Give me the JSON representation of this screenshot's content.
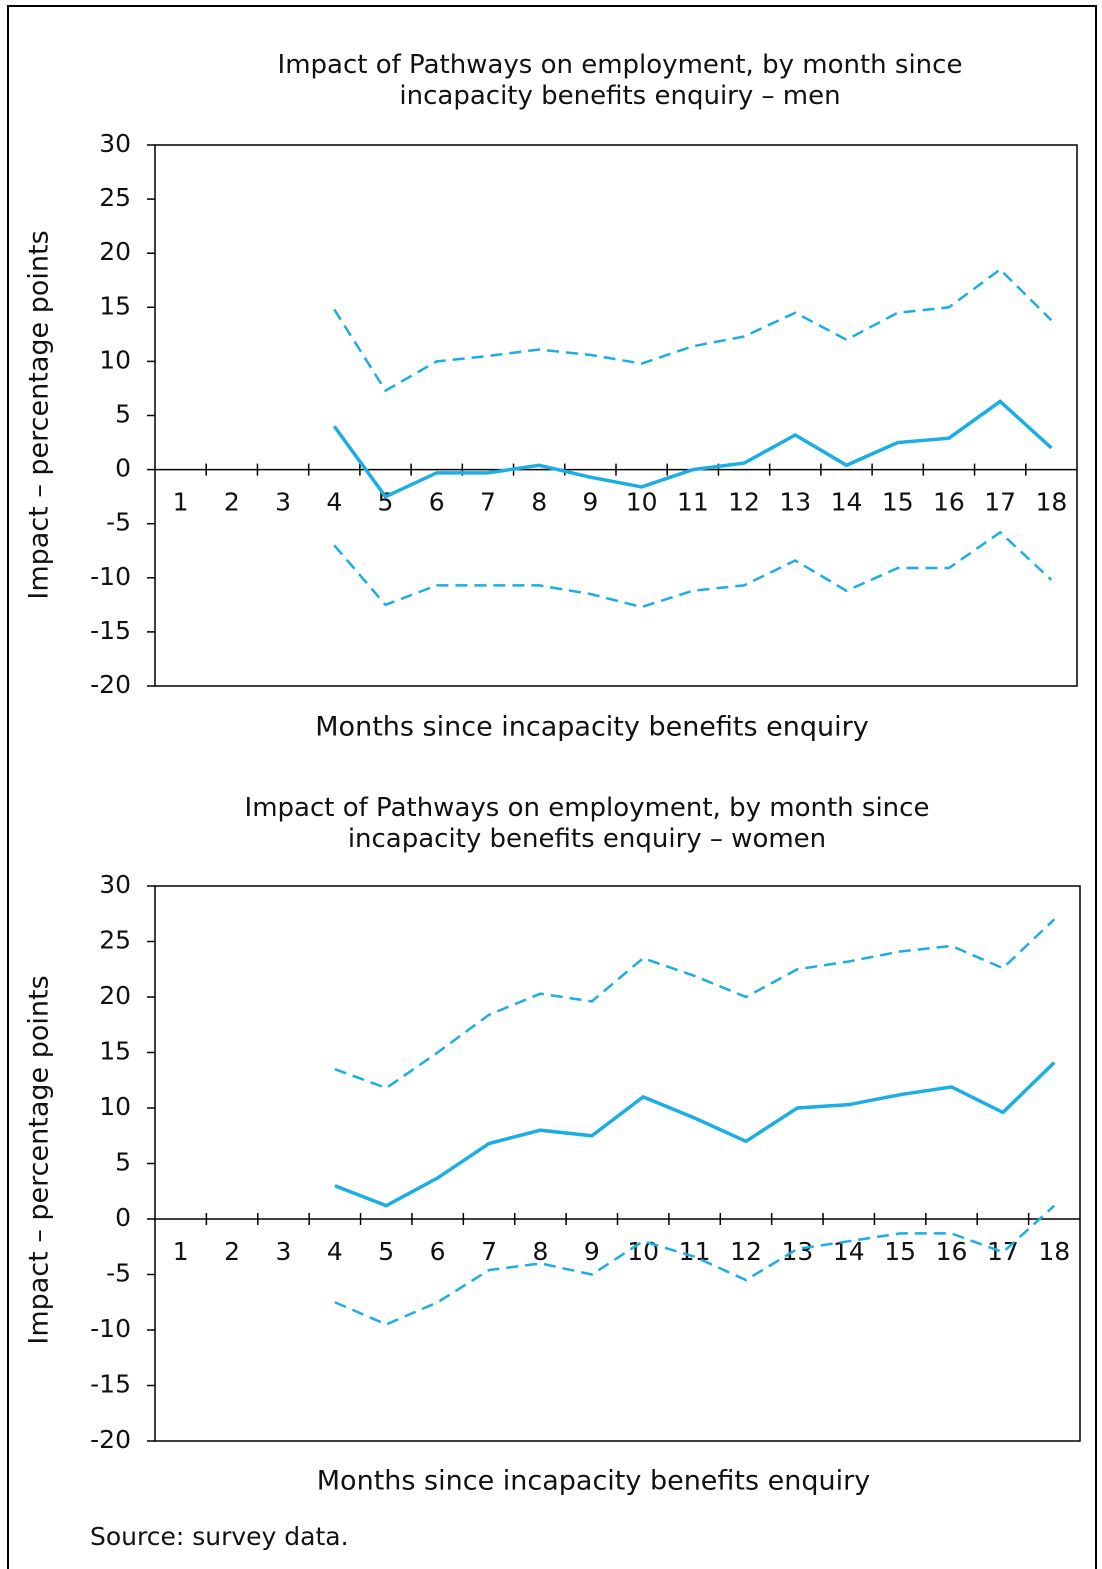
{
  "chart_data": [
    {
      "type": "line",
      "title": "Impact of Pathways on employment, by month since incapacity benefits enquiry – men",
      "y_label": "Impact – percentage points",
      "x_label": "Months since incapacity benefits enquiry",
      "categories": [
        1,
        2,
        3,
        4,
        5,
        6,
        7,
        8,
        9,
        10,
        11,
        12,
        13,
        14,
        15,
        16,
        17,
        18
      ],
      "ylim": [
        -20,
        30
      ],
      "yticks": [
        -20,
        -15,
        -10,
        -5,
        0,
        5,
        10,
        15,
        20,
        25,
        30
      ],
      "series": [
        {
          "color": "#1aaee5",
          "style": "dashed",
          "values": [
            null,
            null,
            null,
            14.8,
            7.3,
            10,
            10.5,
            11.1,
            10.6,
            9.8,
            11.4,
            12.3,
            14.5,
            12,
            14.5,
            15,
            18.5,
            13.8
          ]
        },
        {
          "color": "#1aaee5",
          "style": "solid",
          "values": [
            null,
            null,
            null,
            4,
            -2.5,
            -0.3,
            -0.3,
            0.4,
            -0.7,
            -1.6,
            0,
            0.6,
            3.2,
            0.4,
            2.5,
            2.9,
            6.3,
            2
          ]
        },
        {
          "color": "#1aaee5",
          "style": "dashed",
          "values": [
            null,
            null,
            null,
            -7,
            -12.5,
            -10.7,
            -10.7,
            -10.7,
            -11.5,
            -12.7,
            -11.2,
            -10.7,
            -8.4,
            -11.2,
            -9.1,
            -9.1,
            -5.8,
            -10.2
          ]
        }
      ]
    },
    {
      "type": "line",
      "title": "Impact of Pathways on employment, by month since incapacity benefits enquiry – women",
      "y_label": "Impact – percentage points",
      "x_label": "Months since incapacity benefits enquiry",
      "categories": [
        1,
        2,
        3,
        4,
        5,
        6,
        7,
        8,
        9,
        10,
        11,
        12,
        13,
        14,
        15,
        16,
        17,
        18
      ],
      "ylim": [
        -20,
        30
      ],
      "yticks": [
        -20,
        -15,
        -10,
        -5,
        0,
        5,
        10,
        15,
        20,
        25,
        30
      ],
      "series": [
        {
          "color": "#1aaee5",
          "style": "dashed",
          "values": [
            null,
            null,
            null,
            13.5,
            11.8,
            15,
            18.4,
            20.3,
            19.6,
            23.5,
            21.9,
            20,
            22.5,
            23.2,
            24.1,
            24.6,
            22.6,
            27
          ]
        },
        {
          "color": "#1aaee5",
          "style": "solid",
          "values": [
            null,
            null,
            null,
            3,
            1.2,
            3.7,
            6.8,
            8,
            7.5,
            11,
            9.1,
            7,
            10,
            10.3,
            11.2,
            11.9,
            9.6,
            14.1
          ]
        },
        {
          "color": "#1aaee5",
          "style": "dashed",
          "values": [
            null,
            null,
            null,
            -7.5,
            -9.5,
            -7.5,
            -4.6,
            -4,
            -5,
            -2,
            -3.4,
            -5.5,
            -2.7,
            -2,
            -1.3,
            -1.3,
            -3,
            1.2
          ]
        }
      ]
    }
  ],
  "source": "Source: survey data."
}
